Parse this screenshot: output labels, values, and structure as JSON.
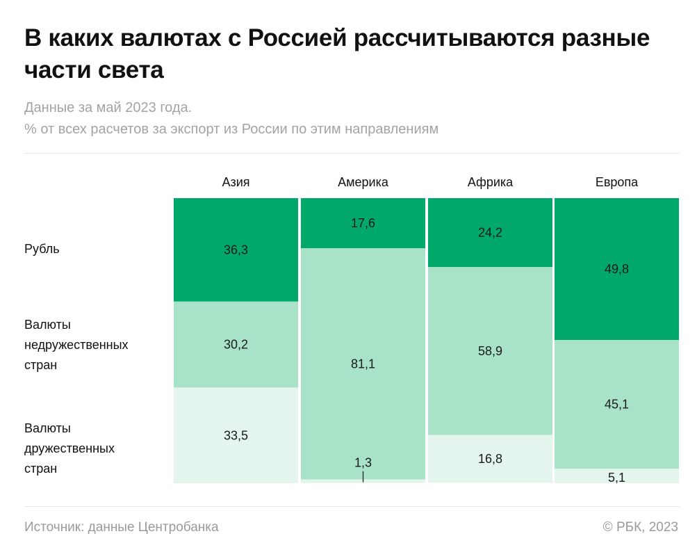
{
  "title": "В каких валютах с Россией рассчитываются разные части света",
  "subtitle_lines": [
    "Данные за май 2023 года.",
    "% от всех расчетов за экспорт из России по этим направлениям"
  ],
  "footer": {
    "source": "Источник: данные Центробанка",
    "copyright": "© РБК, 2023"
  },
  "chart_data": {
    "type": "bar",
    "stacked": true,
    "orientation": "vertical",
    "ylim": [
      0,
      100
    ],
    "unit": "%",
    "categories": [
      "Азия",
      "Америка",
      "Африка",
      "Европа"
    ],
    "series": [
      {
        "name": "Рубль",
        "color": "#00a86b",
        "values": [
          36.3,
          17.6,
          24.2,
          49.8
        ],
        "labels": [
          "36,3",
          "17,6",
          "24,2",
          "49,8"
        ]
      },
      {
        "name": "Валюты недружественных стран",
        "color": "#a8e3c8",
        "values": [
          30.2,
          81.1,
          58.9,
          45.1
        ],
        "labels": [
          "30,2",
          "81,1",
          "58,9",
          "45,1"
        ]
      },
      {
        "name": "Валюты дружественных стран",
        "color": "#e3f5ec",
        "values": [
          33.5,
          1.3,
          16.8,
          5.1
        ],
        "labels": [
          "33,5",
          "1,3",
          "16,8",
          "5,1"
        ]
      }
    ],
    "row_labels": [
      [
        "Рубль"
      ],
      [
        "Валюты",
        "недружественных",
        "стран"
      ],
      [
        "Валюты",
        "дружественных",
        "стран"
      ]
    ]
  }
}
